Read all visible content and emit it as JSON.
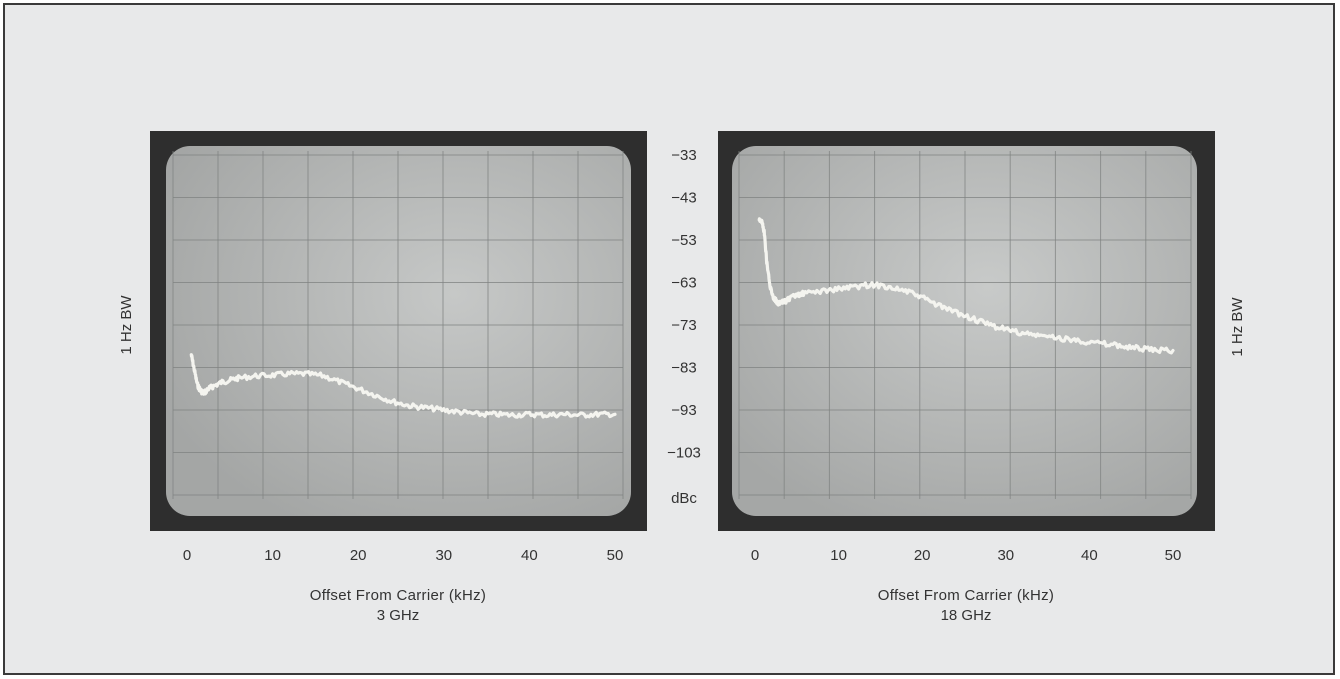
{
  "chart_data": [
    {
      "type": "line",
      "title": "",
      "xlabel": "Offset From Carrier (kHz)",
      "subtitle": "3 GHz",
      "ylabel": "1 Hz BW",
      "x_ticks": [
        "0",
        "10",
        "20",
        "30",
        "40",
        "50"
      ],
      "xlim": [
        0,
        50
      ],
      "ylim": [
        -113,
        -33
      ],
      "grid": true,
      "series": [
        {
          "x": [
            0.5,
            0.8,
            1.2,
            1.6,
            2,
            2.5,
            3,
            4,
            5,
            6,
            8,
            10,
            12,
            14,
            16,
            18,
            20,
            22,
            24,
            26,
            28,
            30,
            32,
            34,
            36,
            38,
            40,
            42,
            44,
            46,
            48,
            50
          ],
          "y": [
            -80,
            -83,
            -87,
            -88.5,
            -89,
            -88,
            -87.5,
            -86.5,
            -86,
            -85.5,
            -85,
            -84.8,
            -84.5,
            -84.5,
            -85,
            -86.5,
            -88,
            -89.5,
            -91,
            -92,
            -92.5,
            -93,
            -93.5,
            -94,
            -94,
            -94.2,
            -94,
            -94.2,
            -94,
            -94.2,
            -94,
            -94
          ]
        }
      ]
    },
    {
      "type": "line",
      "title": "",
      "xlabel": "Offset From Carrier (kHz)",
      "subtitle": "18 GHz",
      "ylabel": "1 Hz BW",
      "x_ticks": [
        "0",
        "10",
        "20",
        "30",
        "40",
        "50"
      ],
      "xlim": [
        0,
        50
      ],
      "ylim": [
        -113,
        -33
      ],
      "grid": true,
      "series": [
        {
          "x": [
            0.5,
            0.8,
            1.1,
            1.4,
            1.8,
            2.2,
            2.6,
            3,
            3.5,
            4,
            5,
            6,
            8,
            10,
            12,
            14,
            16,
            18,
            20,
            22,
            24,
            26,
            28,
            30,
            32,
            34,
            36,
            38,
            40,
            42,
            44,
            46,
            48,
            50
          ],
          "y": [
            -48,
            -48.5,
            -51,
            -58,
            -64,
            -66.5,
            -67.5,
            -68,
            -67.5,
            -67,
            -66,
            -65.5,
            -65,
            -64.5,
            -64,
            -63.5,
            -64,
            -65,
            -66.5,
            -68.5,
            -70,
            -71.5,
            -73,
            -74,
            -75,
            -75.5,
            -76,
            -76.5,
            -77,
            -77.5,
            -78,
            -78.5,
            -79,
            -79
          ]
        }
      ]
    }
  ],
  "y_axis": {
    "ticks": [
      "-33",
      "-43",
      "-53",
      "-63",
      "-73",
      "-83",
      "-93",
      "-103"
    ],
    "unit": "dBc"
  },
  "colors": {
    "page": "#e8e9ea",
    "bezel": "#2e2e2e",
    "screen": "#b3b5b4",
    "grid": "#7f8281",
    "trace": "#f4f4ef"
  }
}
